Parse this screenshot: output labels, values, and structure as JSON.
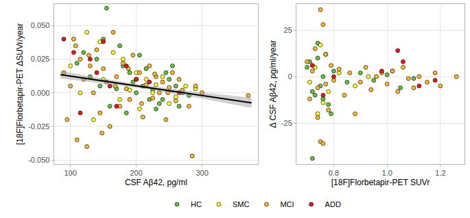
{
  "chart_data": [
    {
      "type": "scatter",
      "x_label": "CSF Aβ42, pg/ml",
      "y_label": "[18F]Florbetapir-PET ΔSUVr/year",
      "xlim": [
        75,
        385
      ],
      "ylim": [
        -0.053,
        0.066
      ],
      "xticks": [
        100,
        200,
        300
      ],
      "yticks": [
        {
          "value": -0.05,
          "label": "-0.050"
        },
        {
          "value": -0.025,
          "label": "-0.025"
        },
        {
          "value": 0,
          "label": "0.000"
        },
        {
          "value": 0.025,
          "label": "0.025"
        },
        {
          "value": 0.05,
          "label": "0.050"
        }
      ],
      "grid": true,
      "legend": "bottom",
      "marker": "circle",
      "series": [
        {
          "name": "HC",
          "color": "#6abf3f",
          "x": [
            155,
            120,
            180,
            210,
            240,
            250,
            270,
            190,
            160,
            140,
            230,
            200,
            260,
            175,
            130,
            220,
            245,
            280,
            150,
            195,
            215,
            235,
            170,
            110,
            265,
            205,
            185,
            145,
            255,
            225
          ],
          "values": [
            0.063,
            0.03,
            0.02,
            0.005,
            -0.005,
            0.01,
            0.0,
            0.015,
            -0.01,
            0.025,
            -0.012,
            0.0,
            0.005,
            0.035,
            0.012,
            -0.005,
            0.015,
            -0.002,
            0.04,
            0.008,
            0.018,
            -0.008,
            0.003,
            0.022,
            -0.01,
            0.028,
            -0.015,
            0.005,
            0.02,
            0.002
          ]
        },
        {
          "name": "SMC",
          "color": "#ffff33",
          "x": [
            100,
            125,
            150,
            175,
            200,
            225,
            250,
            275,
            135,
            165,
            190,
            215,
            240,
            115,
            145,
            260,
            205,
            180,
            230,
            290
          ],
          "values": [
            0.02,
            0.045,
            0.01,
            -0.005,
            0.015,
            0.0,
            -0.008,
            0.005,
            -0.02,
            0.03,
            0.002,
            0.01,
            0.012,
            0.0,
            0.038,
            -0.003,
            -0.012,
            0.025,
            0.006,
            0.003
          ]
        },
        {
          "name": "MCI",
          "color": "#f7b731",
          "x": [
            90,
            95,
            100,
            105,
            110,
            115,
            120,
            125,
            130,
            135,
            140,
            145,
            150,
            155,
            160,
            165,
            170,
            175,
            180,
            185,
            190,
            195,
            200,
            205,
            210,
            215,
            220,
            225,
            230,
            235,
            240,
            245,
            250,
            255,
            260,
            265,
            270,
            280,
            290,
            300,
            370,
            108,
            128,
            148,
            168,
            188,
            208,
            228,
            248,
            285
          ],
          "values": [
            0.015,
            -0.02,
            0.005,
            0.04,
            -0.035,
            0.025,
            0.01,
            -0.04,
            0.02,
            0.0,
            0.032,
            -0.015,
            0.018,
            0.008,
            -0.025,
            0.045,
            0.012,
            -0.01,
            0.022,
            0.003,
            -0.005,
            0.028,
            0.01,
            0.015,
            -0.018,
            0.006,
            0.02,
            -0.004,
            0.012,
            0.0,
            0.008,
            -0.02,
            0.004,
            0.015,
            -0.006,
            0.01,
            0.002,
            -0.01,
            0.005,
            0.0,
            -0.002,
            0.035,
            0.028,
            -0.03,
            0.005,
            0.018,
            -0.008,
            0.014,
            0.0,
            -0.047
          ]
        },
        {
          "name": "ADD",
          "color": "#e41a1c",
          "x": [
            90,
            105,
            115,
            130,
            140,
            150,
            160,
            170,
            185,
            200,
            220,
            265
          ],
          "values": [
            0.04,
            0.03,
            -0.015,
            0.025,
            0.015,
            0.038,
            0.005,
            -0.01,
            0.02,
            0.01,
            0.008,
            0.0
          ]
        },
        {
          "type": "line",
          "color": "#000000",
          "x": [
            85,
            150,
            200,
            250,
            300,
            375
          ],
          "values": [
            0.0135,
            0.0088,
            0.0052,
            0.0016,
            -0.0021,
            -0.0075
          ],
          "band_lower": [
            0.0107,
            0.007,
            0.0038,
            0.0,
            -0.0043,
            -0.0113
          ],
          "band_upper": [
            0.0163,
            0.0106,
            0.0066,
            0.0032,
            0.0001,
            -0.0037
          ]
        }
      ]
    },
    {
      "type": "scatter",
      "x_label": "[18F]Florbetapir-PET SUVr",
      "y_label": "Δ CSF Aβ42, pg/ml/year",
      "xlim": [
        0.66,
        1.29
      ],
      "ylim": [
        -47,
        39
      ],
      "xticks": [
        0.8,
        {
          "value": 1.0,
          "label": "1.0"
        },
        1.2
      ],
      "yticks": [
        -25,
        0,
        25
      ],
      "grid": true,
      "marker": "circle",
      "series": [
        {
          "name": "HC",
          "color": "#6abf3f",
          "x": [
            0.7,
            0.72,
            0.74,
            0.75,
            0.76,
            0.78,
            0.8,
            0.73,
            0.71,
            0.77,
            0.85,
            0.9,
            0.95,
            1.0,
            1.05,
            1.1,
            0.79,
            0.74,
            0.72,
            0.76
          ],
          "values": [
            5,
            -44,
            10,
            -5,
            0,
            -15,
            3,
            -10,
            8,
            12,
            -3,
            2,
            -2,
            1,
            -6,
            -1,
            -20,
            18,
            -8,
            -12
          ]
        },
        {
          "name": "SMC",
          "color": "#ffff33",
          "x": [
            0.71,
            0.73,
            0.75,
            0.78,
            0.82,
            0.88,
            0.93,
            1.02,
            0.76,
            0.74
          ],
          "values": [
            -3,
            5,
            17,
            -8,
            2,
            -5,
            0,
            3,
            -14,
            -20
          ]
        },
        {
          "name": "MCI",
          "color": "#f7b731",
          "x": [
            0.7,
            0.71,
            0.72,
            0.73,
            0.74,
            0.75,
            0.76,
            0.77,
            0.78,
            0.79,
            0.8,
            0.82,
            0.84,
            0.86,
            0.88,
            0.9,
            0.92,
            0.94,
            0.96,
            0.98,
            1.0,
            1.02,
            1.04,
            1.06,
            1.08,
            1.1,
            1.12,
            1.15,
            1.18,
            1.2,
            1.26,
            0.75,
            0.76,
            0.74,
            0.77
          ],
          "values": [
            8,
            -12,
            3,
            15,
            -6,
            36,
            28,
            -4,
            -18,
            6,
            -2,
            4,
            -10,
            2,
            -20,
            -3,
            5,
            -7,
            0,
            2,
            -4,
            3,
            -8,
            5,
            -1,
            -6,
            0,
            -3,
            2,
            -5,
            0,
            -35,
            -36,
            -22,
            12
          ]
        },
        {
          "name": "ADD",
          "color": "#e41a1c",
          "x": [
            0.72,
            0.76,
            0.8,
            0.98,
            1.04,
            1.06,
            1.12,
            1.18
          ],
          "values": [
            6,
            -10,
            0,
            3,
            14,
            8,
            -5,
            -2
          ]
        }
      ]
    }
  ]
}
